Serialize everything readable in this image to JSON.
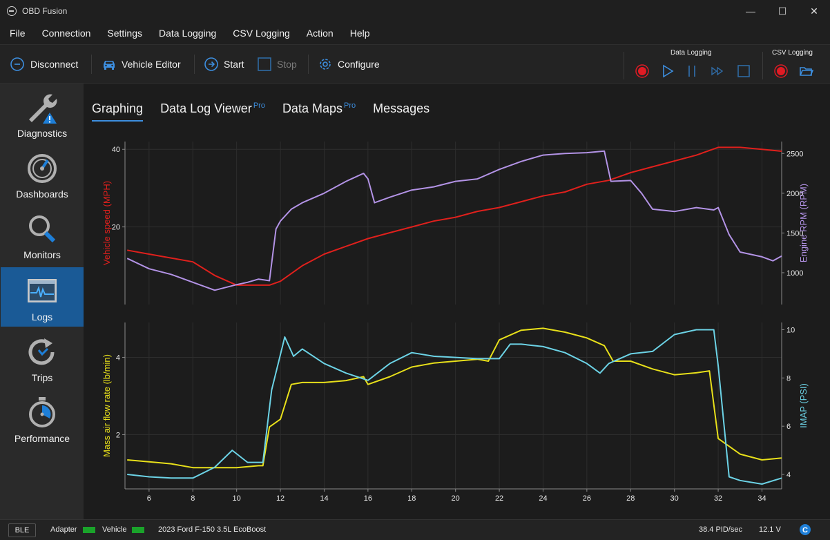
{
  "window": {
    "title": "OBD Fusion",
    "minimize_glyph": "—",
    "maximize_glyph": "☐",
    "close_glyph": "✕"
  },
  "menu": [
    "File",
    "Connection",
    "Settings",
    "Data Logging",
    "CSV Logging",
    "Action",
    "Help"
  ],
  "toolbar": {
    "disconnect": "Disconnect",
    "vehicle_editor": "Vehicle Editor",
    "start": "Start",
    "stop": "Stop",
    "configure": "Configure",
    "data_logging_label": "Data Logging",
    "csv_logging_label": "CSV Logging",
    "accent": "#3d8fe0",
    "record_color": "#e01b24"
  },
  "sidebar": [
    {
      "label": "Diagnostics",
      "icon": "wrench-warning-icon"
    },
    {
      "label": "Dashboards",
      "icon": "gauge-icon"
    },
    {
      "label": "Monitors",
      "icon": "magnifier-icon"
    },
    {
      "label": "Logs",
      "icon": "log-graph-icon",
      "active": true
    },
    {
      "label": "Trips",
      "icon": "trips-icon"
    },
    {
      "label": "Performance",
      "icon": "stopwatch-icon"
    }
  ],
  "tabs": [
    {
      "label": "Graphing",
      "active": true
    },
    {
      "label": "Data Log Viewer",
      "badge": "Pro"
    },
    {
      "label": "Data Maps",
      "badge": "Pro"
    },
    {
      "label": "Messages"
    }
  ],
  "status": {
    "connection": "BLE",
    "adapter": "Adapter",
    "vehicle": "Vehicle",
    "vehicle_name": "2023 Ford F-150 3.5L EcoBoost",
    "rate": "38.4 PID/sec",
    "voltage": "12.1 V",
    "led_color": "#1aa32a"
  },
  "chart_data": [
    {
      "type": "line",
      "xlim": [
        4.9,
        34.9
      ],
      "x_ticks": [
        6,
        8,
        10,
        12,
        14,
        16,
        18,
        20,
        22,
        24,
        26,
        28,
        30,
        32,
        34
      ],
      "grid": true,
      "series": [
        {
          "name": "Vehicle speed (MPH)",
          "axis": "left",
          "color": "#e0201c",
          "ylim": [
            0,
            42
          ],
          "y_ticks": [
            20,
            40
          ],
          "points": [
            [
              5,
              14
            ],
            [
              6,
              13
            ],
            [
              7,
              12
            ],
            [
              8,
              11
            ],
            [
              9,
              7.5
            ],
            [
              10,
              5
            ],
            [
              11,
              5
            ],
            [
              11.5,
              5
            ],
            [
              12,
              6
            ],
            [
              13,
              10
            ],
            [
              14,
              13
            ],
            [
              15,
              15
            ],
            [
              16,
              17
            ],
            [
              17,
              18.5
            ],
            [
              18,
              20
            ],
            [
              19,
              21.5
            ],
            [
              20,
              22.5
            ],
            [
              21,
              24
            ],
            [
              22,
              25
            ],
            [
              23,
              26.5
            ],
            [
              24,
              28
            ],
            [
              25,
              29
            ],
            [
              26,
              31
            ],
            [
              27,
              32
            ],
            [
              28,
              34
            ],
            [
              29,
              35.5
            ],
            [
              30,
              37
            ],
            [
              31,
              38.5
            ],
            [
              32,
              40.5
            ],
            [
              33,
              40.5
            ],
            [
              34,
              40
            ],
            [
              34.9,
              39.5
            ]
          ]
        },
        {
          "name": "Engine RPM (RPM)",
          "axis": "right",
          "color": "#b393e6",
          "ylim": [
            600,
            2650
          ],
          "y_ticks": [
            1000,
            1500,
            2000,
            2500
          ],
          "points": [
            [
              5,
              1180
            ],
            [
              6,
              1050
            ],
            [
              7,
              980
            ],
            [
              8,
              880
            ],
            [
              9,
              780
            ],
            [
              10,
              850
            ],
            [
              10.5,
              880
            ],
            [
              11,
              920
            ],
            [
              11.5,
              900
            ],
            [
              11.8,
              1550
            ],
            [
              12,
              1650
            ],
            [
              12.5,
              1800
            ],
            [
              13,
              1880
            ],
            [
              14,
              2000
            ],
            [
              15,
              2150
            ],
            [
              15.8,
              2250
            ],
            [
              16,
              2180
            ],
            [
              16.3,
              1880
            ],
            [
              17,
              1950
            ],
            [
              18,
              2040
            ],
            [
              19,
              2080
            ],
            [
              20,
              2150
            ],
            [
              21,
              2180
            ],
            [
              22,
              2300
            ],
            [
              23,
              2400
            ],
            [
              24,
              2480
            ],
            [
              25,
              2500
            ],
            [
              26,
              2510
            ],
            [
              26.8,
              2530
            ],
            [
              27.1,
              2150
            ],
            [
              28,
              2160
            ],
            [
              28.5,
              2000
            ],
            [
              29,
              1800
            ],
            [
              30,
              1770
            ],
            [
              31,
              1820
            ],
            [
              31.8,
              1790
            ],
            [
              32,
              1820
            ],
            [
              32.5,
              1480
            ],
            [
              33,
              1260
            ],
            [
              34,
              1200
            ],
            [
              34.5,
              1150
            ],
            [
              34.9,
              1210
            ]
          ]
        }
      ]
    },
    {
      "type": "line",
      "xlim": [
        4.9,
        34.9
      ],
      "x_ticks": [
        6,
        8,
        10,
        12,
        14,
        16,
        18,
        20,
        22,
        24,
        26,
        28,
        30,
        32,
        34
      ],
      "grid": true,
      "series": [
        {
          "name": "Mass air flow rate (lb/min)",
          "axis": "left",
          "color": "#e8e01a",
          "ylim": [
            0.6,
            4.9
          ],
          "y_ticks": [
            2,
            4
          ],
          "points": [
            [
              5,
              1.35
            ],
            [
              6,
              1.3
            ],
            [
              7,
              1.25
            ],
            [
              8,
              1.15
            ],
            [
              9,
              1.15
            ],
            [
              10,
              1.15
            ],
            [
              11,
              1.2
            ],
            [
              11.2,
              1.2
            ],
            [
              11.5,
              2.2
            ],
            [
              12,
              2.4
            ],
            [
              12.5,
              3.3
            ],
            [
              13,
              3.35
            ],
            [
              14,
              3.35
            ],
            [
              15,
              3.4
            ],
            [
              15.8,
              3.5
            ],
            [
              16,
              3.3
            ],
            [
              17,
              3.5
            ],
            [
              18,
              3.75
            ],
            [
              19,
              3.85
            ],
            [
              20,
              3.9
            ],
            [
              21,
              3.95
            ],
            [
              21.5,
              3.9
            ],
            [
              22,
              4.45
            ],
            [
              23,
              4.7
            ],
            [
              24,
              4.75
            ],
            [
              25,
              4.65
            ],
            [
              26,
              4.5
            ],
            [
              26.8,
              4.3
            ],
            [
              27.2,
              3.9
            ],
            [
              28,
              3.9
            ],
            [
              29,
              3.7
            ],
            [
              30,
              3.55
            ],
            [
              31,
              3.6
            ],
            [
              31.6,
              3.65
            ],
            [
              32,
              1.9
            ],
            [
              33,
              1.5
            ],
            [
              34,
              1.35
            ],
            [
              34.9,
              1.4
            ]
          ]
        },
        {
          "name": "IMAP (PSI)",
          "axis": "right",
          "color": "#6cd3e6",
          "ylim": [
            3.4,
            10.3
          ],
          "y_ticks": [
            4,
            6,
            8,
            10
          ],
          "points": [
            [
              5,
              4
            ],
            [
              6,
              3.9
            ],
            [
              7,
              3.85
            ],
            [
              8,
              3.85
            ],
            [
              9,
              4.3
            ],
            [
              9.8,
              5
            ],
            [
              10.5,
              4.5
            ],
            [
              11.2,
              4.5
            ],
            [
              11.6,
              7.5
            ],
            [
              12.2,
              9.7
            ],
            [
              12.6,
              8.9
            ],
            [
              13,
              9.2
            ],
            [
              14,
              8.6
            ],
            [
              15,
              8.2
            ],
            [
              16,
              7.9
            ],
            [
              17,
              8.6
            ],
            [
              18,
              9.05
            ],
            [
              19,
              8.9
            ],
            [
              20,
              8.85
            ],
            [
              21,
              8.8
            ],
            [
              22,
              8.8
            ],
            [
              22.5,
              9.4
            ],
            [
              23,
              9.4
            ],
            [
              24,
              9.3
            ],
            [
              25,
              9.05
            ],
            [
              26,
              8.6
            ],
            [
              26.6,
              8.2
            ],
            [
              27,
              8.6
            ],
            [
              28,
              9
            ],
            [
              29,
              9.1
            ],
            [
              30,
              9.8
            ],
            [
              31,
              10
            ],
            [
              31.8,
              10
            ],
            [
              32,
              8.5
            ],
            [
              32.5,
              3.9
            ],
            [
              33,
              3.75
            ],
            [
              34,
              3.6
            ],
            [
              34.9,
              3.85
            ]
          ]
        }
      ]
    }
  ]
}
